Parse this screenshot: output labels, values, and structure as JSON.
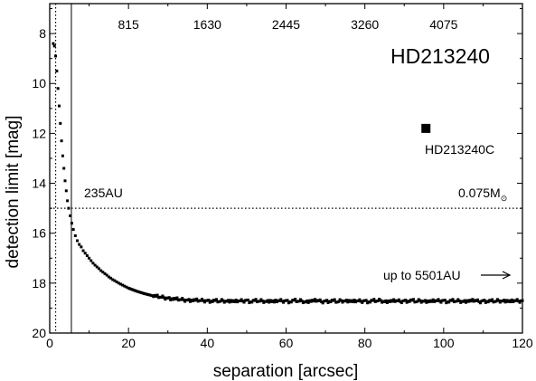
{
  "chart_data": {
    "type": "scatter",
    "title": "HD213240",
    "xlabel": "separation [arcsec]",
    "ylabel": "detection limit [mag]",
    "xlim": [
      0,
      120
    ],
    "ylim": [
      20,
      6.8
    ],
    "y_inverted": true,
    "grid": false,
    "x_ticks": [
      0,
      20,
      40,
      60,
      80,
      100,
      120
    ],
    "y_ticks": [
      8,
      10,
      12,
      14,
      16,
      18,
      20
    ],
    "top_axis": {
      "label": "",
      "ticks": [
        {
          "x": 20,
          "label": "815"
        },
        {
          "x": 40,
          "label": "1630"
        },
        {
          "x": 60,
          "label": "2445"
        },
        {
          "x": 80,
          "label": "3260"
        },
        {
          "x": 100,
          "label": "4075"
        }
      ]
    },
    "series": [
      {
        "marker": "small-square",
        "color": "#000000",
        "points": [
          [
            0.9,
            8.4
          ],
          [
            1.2,
            8.5
          ],
          [
            1.5,
            8.9
          ],
          [
            1.8,
            9.5
          ],
          [
            2.1,
            10.2
          ],
          [
            2.4,
            10.9
          ],
          [
            2.7,
            11.6
          ],
          [
            3.0,
            12.3
          ],
          [
            3.3,
            12.9
          ],
          [
            3.6,
            13.4
          ],
          [
            3.9,
            13.9
          ],
          [
            4.2,
            14.3
          ],
          [
            4.5,
            14.7
          ],
          [
            4.8,
            15.0
          ],
          [
            5.2,
            15.3
          ],
          [
            5.6,
            15.6
          ],
          [
            6.0,
            15.85
          ],
          [
            6.5,
            16.1
          ],
          [
            7.0,
            16.3
          ],
          [
            7.5,
            16.45
          ],
          [
            8.0,
            16.55
          ],
          [
            8.5,
            16.7
          ],
          [
            9.0,
            16.8
          ],
          [
            9.5,
            16.9
          ],
          [
            10.0,
            17.0
          ],
          [
            10.5,
            17.1
          ],
          [
            11.0,
            17.2
          ],
          [
            11.5,
            17.28
          ],
          [
            12.0,
            17.35
          ],
          [
            12.5,
            17.42
          ],
          [
            13.0,
            17.5
          ],
          [
            13.5,
            17.56
          ],
          [
            14.0,
            17.62
          ],
          [
            14.5,
            17.68
          ],
          [
            15.0,
            17.75
          ],
          [
            15.5,
            17.8
          ],
          [
            16.0,
            17.86
          ],
          [
            16.5,
            17.9
          ],
          [
            17.0,
            17.95
          ],
          [
            17.5,
            18.0
          ],
          [
            18.0,
            18.04
          ],
          [
            18.5,
            18.08
          ],
          [
            19.0,
            18.12
          ],
          [
            19.5,
            18.16
          ],
          [
            20.0,
            18.2
          ],
          [
            21.0,
            18.26
          ],
          [
            22.0,
            18.32
          ],
          [
            23.0,
            18.37
          ],
          [
            24.0,
            18.42
          ],
          [
            25.0,
            18.46
          ],
          [
            26.0,
            18.5
          ],
          [
            27.0,
            18.53
          ],
          [
            28.0,
            18.56
          ],
          [
            29.0,
            18.58
          ],
          [
            30.0,
            18.6
          ],
          [
            31.0,
            18.62
          ],
          [
            32.0,
            18.64
          ],
          [
            33.0,
            18.66
          ],
          [
            34.0,
            18.67
          ],
          [
            35.0,
            18.68
          ],
          [
            36.0,
            18.68
          ],
          [
            37.0,
            18.69
          ],
          [
            38.0,
            18.7
          ],
          [
            39.0,
            18.7
          ],
          [
            40.0,
            18.7
          ],
          [
            41.0,
            18.72
          ],
          [
            42.0,
            18.7
          ],
          [
            43.0,
            18.74
          ],
          [
            44.0,
            18.7
          ],
          [
            45.0,
            18.73
          ],
          [
            46.0,
            18.69
          ],
          [
            47.0,
            18.75
          ],
          [
            48.0,
            18.71
          ],
          [
            49.0,
            18.72
          ],
          [
            50.0,
            18.68
          ],
          [
            51.0,
            18.75
          ],
          [
            52.0,
            18.7
          ],
          [
            53.0,
            18.73
          ],
          [
            54.0,
            18.71
          ],
          [
            55.0,
            18.74
          ],
          [
            56.0,
            18.69
          ],
          [
            57.0,
            18.76
          ],
          [
            58.0,
            18.7
          ],
          [
            59.0,
            18.72
          ],
          [
            60.0,
            18.7
          ],
          [
            61.0,
            18.75
          ],
          [
            62.0,
            18.69
          ],
          [
            63.0,
            18.73
          ],
          [
            64.0,
            18.71
          ],
          [
            65.0,
            18.76
          ],
          [
            66.0,
            18.7
          ],
          [
            67.0,
            18.72
          ],
          [
            68.0,
            18.69
          ],
          [
            69.0,
            18.75
          ],
          [
            70.0,
            18.71
          ],
          [
            71.0,
            18.73
          ],
          [
            72.0,
            18.7
          ],
          [
            73.0,
            18.76
          ],
          [
            74.0,
            18.7
          ],
          [
            75.0,
            18.72
          ],
          [
            76.0,
            18.69
          ],
          [
            77.0,
            18.75
          ],
          [
            78.0,
            18.71
          ],
          [
            79.0,
            18.73
          ],
          [
            80.0,
            18.7
          ],
          [
            81.0,
            18.75
          ],
          [
            82.0,
            18.7
          ],
          [
            83.0,
            18.72
          ],
          [
            84.0,
            18.69
          ],
          [
            85.0,
            18.75
          ],
          [
            86.0,
            18.71
          ],
          [
            87.0,
            18.73
          ],
          [
            88.0,
            18.7
          ],
          [
            89.0,
            18.74
          ],
          [
            90.0,
            18.7
          ],
          [
            91.0,
            18.72
          ],
          [
            92.0,
            18.69
          ],
          [
            93.0,
            18.75
          ],
          [
            94.0,
            18.7
          ],
          [
            95.0,
            18.73
          ],
          [
            96.0,
            18.71
          ],
          [
            97.0,
            18.74
          ],
          [
            98.0,
            18.7
          ],
          [
            99.0,
            18.72
          ],
          [
            100.0,
            18.69
          ],
          [
            101.0,
            18.75
          ],
          [
            102.0,
            18.7
          ],
          [
            103.0,
            18.73
          ],
          [
            104.0,
            18.71
          ],
          [
            105.0,
            18.74
          ],
          [
            106.0,
            18.7
          ],
          [
            107.0,
            18.72
          ],
          [
            108.0,
            18.69
          ],
          [
            109.0,
            18.75
          ],
          [
            110.0,
            18.7
          ],
          [
            111.0,
            18.73
          ],
          [
            112.0,
            18.71
          ],
          [
            113.0,
            18.74
          ],
          [
            114.0,
            18.7
          ],
          [
            115.0,
            18.72
          ],
          [
            116.0,
            18.69
          ],
          [
            117.0,
            18.75
          ],
          [
            118.0,
            18.7
          ],
          [
            119.0,
            18.72
          ],
          [
            120.0,
            18.7
          ]
        ]
      },
      {
        "marker": "square",
        "color": "#000000",
        "points": [
          [
            95.5,
            11.8
          ]
        ]
      }
    ],
    "reference_lines": [
      {
        "orientation": "horizontal",
        "style": "dotted",
        "value": 15.0
      },
      {
        "orientation": "vertical",
        "style": "solid",
        "value": 5.5
      },
      {
        "orientation": "vertical",
        "style": "dotted",
        "value": 1.5
      }
    ],
    "annotations": {
      "companion_label": "HD213240C",
      "separation_label": "235AU",
      "mass_label": "0.075M",
      "mass_symbol": "⊙",
      "range_label": "up to 5501AU",
      "range_arrow": "right-arrow-icon"
    }
  }
}
